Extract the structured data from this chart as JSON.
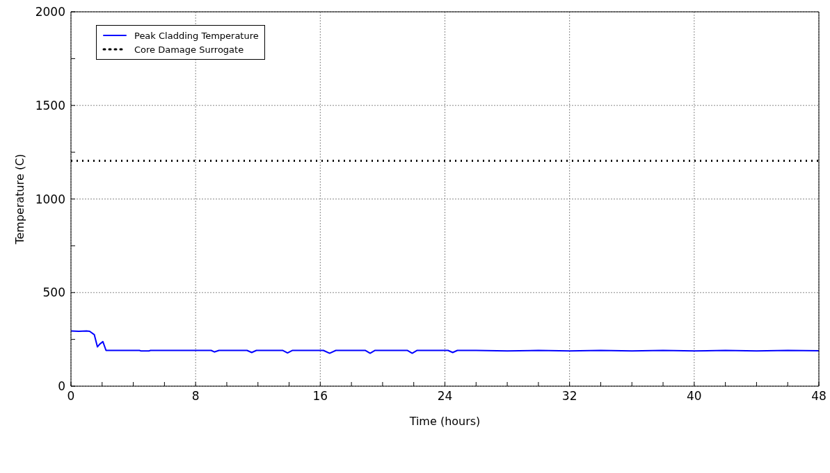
{
  "chart_data": {
    "type": "line",
    "xlabel": "Time (hours)",
    "ylabel": "Temperature (C)",
    "xlim": [
      0,
      48
    ],
    "xticks": [
      0,
      {
        "value": 2,
        "label": null
      },
      {
        "value": 4,
        "label": null
      },
      {
        "value": 6,
        "label": null
      },
      8,
      {
        "value": 10,
        "label": null
      },
      {
        "value": 12,
        "label": null
      },
      {
        "value": 14,
        "label": null
      },
      16,
      {
        "value": 18,
        "label": null
      },
      {
        "value": 20,
        "label": null
      },
      {
        "value": 22,
        "label": null
      },
      24,
      {
        "value": 26,
        "label": null
      },
      {
        "value": 28,
        "label": null
      },
      {
        "value": 30,
        "label": null
      },
      32,
      {
        "value": 34,
        "label": null
      },
      {
        "value": 36,
        "label": null
      },
      {
        "value": 38,
        "label": null
      },
      40,
      {
        "value": 42,
        "label": null
      },
      {
        "value": 44,
        "label": null
      },
      {
        "value": 46,
        "label": null
      },
      48
    ],
    "ylim": [
      0,
      2000
    ],
    "yticks": [
      0,
      {
        "value": 250,
        "label": null
      },
      500,
      {
        "value": 750,
        "label": null
      },
      1000,
      {
        "value": 1250,
        "label": null
      },
      1500,
      {
        "value": 1750,
        "label": null
      },
      2000
    ],
    "grid": true,
    "legend": "top left",
    "marker": "none",
    "series": [
      {
        "name": "Peak Cladding Temperature",
        "color": "#0000ff",
        "line_style": "solid",
        "x": [
          0,
          0.5,
          1.0,
          1.2,
          1.5,
          1.7,
          1.85,
          2.05,
          2.25,
          4.4,
          4.5,
          5.0,
          5.1,
          8,
          9.0,
          9.2,
          9.5,
          11.3,
          11.6,
          11.9,
          13.6,
          13.9,
          14.2,
          16.2,
          16.6,
          17.0,
          18.9,
          19.2,
          19.5,
          21.6,
          21.9,
          22.2,
          24.2,
          24.5,
          24.8,
          26,
          28,
          30,
          32,
          34,
          36,
          38,
          40,
          42,
          44,
          46,
          48
        ],
        "values": [
          295,
          293,
          295,
          293,
          275,
          210,
          225,
          238,
          191,
          191,
          188,
          188,
          191,
          191,
          191,
          183,
          191,
          191,
          180,
          191,
          191,
          178,
          191,
          191,
          176,
          191,
          191,
          176,
          191,
          191,
          176,
          191,
          191,
          180,
          191,
          191,
          188,
          191,
          188,
          191,
          188,
          191,
          188,
          191,
          188,
          191,
          189
        ]
      },
      {
        "name": "Core Damage Surrogate",
        "color": "#000000",
        "line_style": "dotted",
        "x": [
          0,
          48
        ],
        "values": [
          1204,
          1204
        ]
      }
    ]
  }
}
